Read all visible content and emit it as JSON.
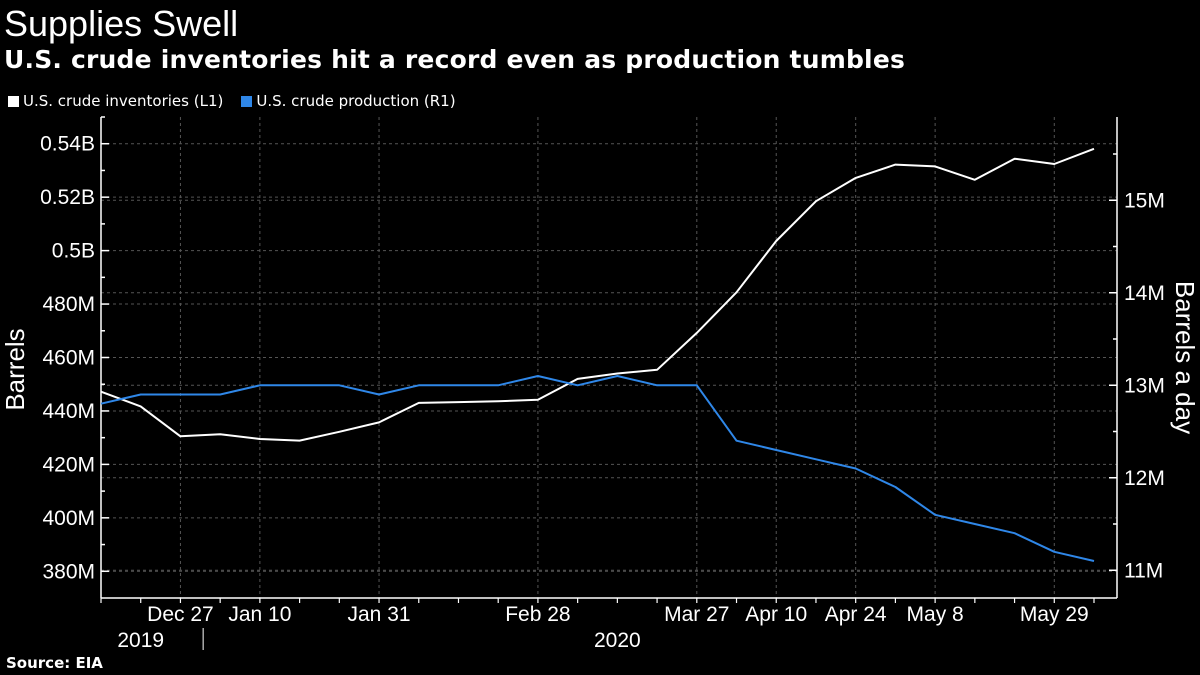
{
  "title": "Supplies Swell",
  "subtitle": "U.S. crude inventories hit a record even as production tumbles",
  "source": "Source: EIA",
  "colors": {
    "inventories": "#ffffff",
    "production": "#2f87e8",
    "grid": "#555555",
    "background": "#000000"
  },
  "chart_data": {
    "type": "line",
    "legend_position": "top-left",
    "grid": true,
    "x_dates": [
      "2019-12-13",
      "2019-12-20",
      "2019-12-27",
      "2020-01-03",
      "2020-01-10",
      "2020-01-17",
      "2020-01-24",
      "2020-01-31",
      "2020-02-07",
      "2020-02-14",
      "2020-02-21",
      "2020-02-28",
      "2020-03-06",
      "2020-03-13",
      "2020-03-20",
      "2020-03-27",
      "2020-04-03",
      "2020-04-10",
      "2020-04-17",
      "2020-04-24",
      "2020-05-01",
      "2020-05-08",
      "2020-05-15",
      "2020-05-22",
      "2020-05-29",
      "2020-06-05"
    ],
    "x_tick_labels": [
      {
        "label": "Dec 27",
        "date": "2019-12-27"
      },
      {
        "label": "Jan 10",
        "date": "2020-01-10"
      },
      {
        "label": "Jan 31",
        "date": "2020-01-31"
      },
      {
        "label": "Feb 28",
        "date": "2020-02-28"
      },
      {
        "label": "Mar 27",
        "date": "2020-03-27"
      },
      {
        "label": "Apr 10",
        "date": "2020-04-10"
      },
      {
        "label": "Apr 24",
        "date": "2020-04-24"
      },
      {
        "label": "May 8",
        "date": "2020-05-08"
      },
      {
        "label": "May 29",
        "date": "2020-05-29"
      }
    ],
    "year_labels": [
      {
        "label": "2019",
        "date": "2019-12-20"
      },
      {
        "label": "2020",
        "date": "2020-03-13"
      }
    ],
    "left_axis": {
      "label": "Barrels",
      "ylim": [
        370,
        550
      ],
      "ticks": [
        {
          "value": 380,
          "label": "380M"
        },
        {
          "value": 400,
          "label": "400M"
        },
        {
          "value": 420,
          "label": "420M"
        },
        {
          "value": 440,
          "label": "440M"
        },
        {
          "value": 460,
          "label": "460M"
        },
        {
          "value": 480,
          "label": "480M"
        },
        {
          "value": 500,
          "label": "0.5B"
        },
        {
          "value": 520,
          "label": "0.52B"
        },
        {
          "value": 540,
          "label": "0.54B"
        }
      ]
    },
    "right_axis": {
      "label": "Barrels a day",
      "ylim": [
        10.7,
        15.9
      ],
      "ticks": [
        {
          "value": 11,
          "label": "11M"
        },
        {
          "value": 12,
          "label": "12M"
        },
        {
          "value": 13,
          "label": "13M"
        },
        {
          "value": 14,
          "label": "14M"
        },
        {
          "value": 15,
          "label": "15M"
        }
      ]
    },
    "series": [
      {
        "name": "U.S. crude inventories (L1)",
        "axis": "left",
        "values": [
          447.2,
          441.7,
          430.5,
          431.3,
          429.5,
          428.9,
          432.2,
          435.7,
          443.0,
          443.3,
          443.6,
          444.2,
          452.0,
          454.0,
          455.4,
          469.2,
          484.4,
          503.6,
          518.5,
          527.2,
          532.2,
          531.5,
          526.5,
          534.4,
          532.4,
          538.1
        ]
      },
      {
        "name": "U.S. crude production (R1)",
        "axis": "right",
        "values": [
          12.8,
          12.9,
          12.9,
          12.9,
          13.0,
          13.0,
          13.0,
          12.9,
          13.0,
          13.0,
          13.0,
          13.1,
          13.0,
          13.1,
          13.0,
          13.0,
          12.4,
          12.3,
          12.2,
          12.1,
          11.9,
          11.6,
          11.5,
          11.4,
          11.2,
          11.1
        ]
      }
    ]
  }
}
